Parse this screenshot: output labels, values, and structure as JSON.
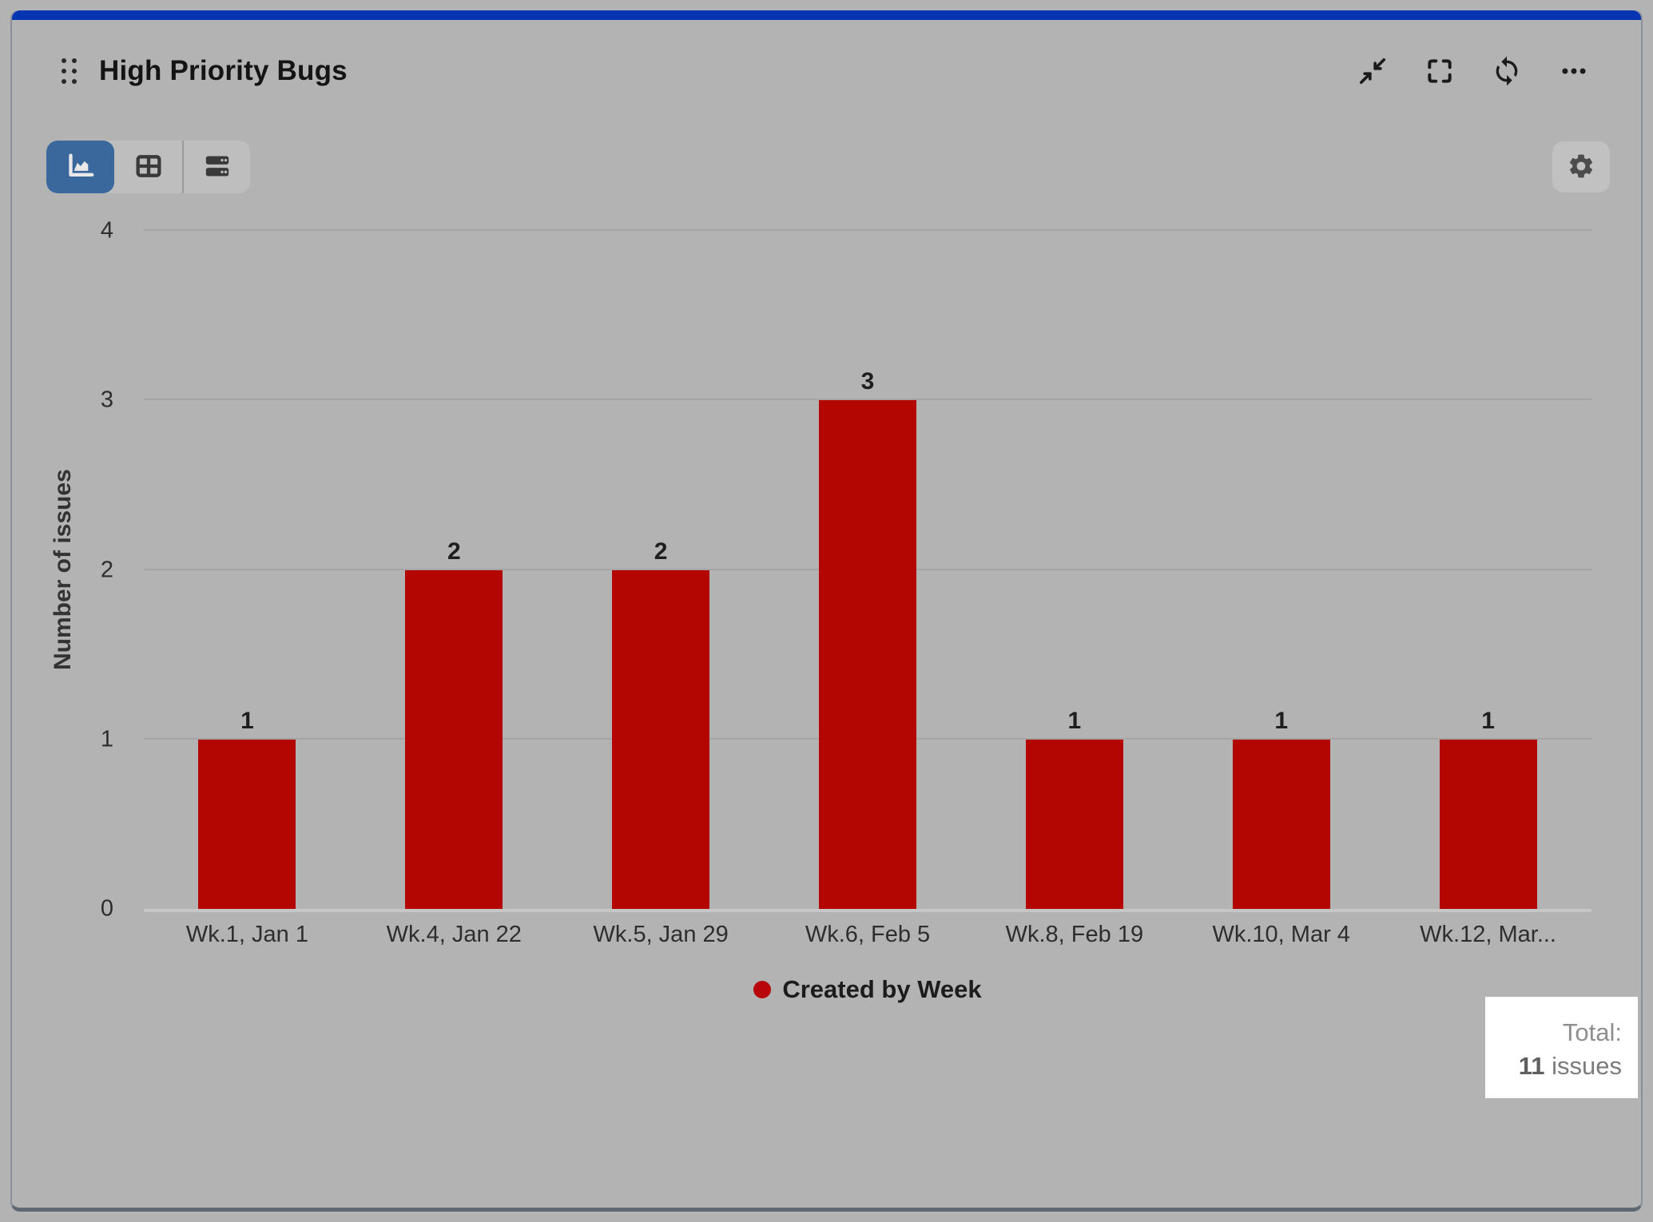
{
  "widget": {
    "title": "High Priority Bugs"
  },
  "header": {
    "drag_handle_icon": "drag-dots",
    "actions": [
      {
        "icon": "collapse-icon"
      },
      {
        "icon": "fullscreen-icon"
      },
      {
        "icon": "refresh-icon"
      },
      {
        "icon": "more-icon"
      }
    ]
  },
  "toolbar": {
    "views": [
      {
        "icon": "area-chart-icon",
        "selected": true
      },
      {
        "icon": "table-icon",
        "selected": false
      },
      {
        "icon": "rows-icon",
        "selected": false
      }
    ],
    "settings_icon": "gear-icon"
  },
  "chart_data": {
    "type": "bar",
    "title": "High Priority Bugs",
    "categories": [
      "Wk.1, Jan 1",
      "Wk.4, Jan 22",
      "Wk.5, Jan 29",
      "Wk.6, Feb 5",
      "Wk.8, Feb 19",
      "Wk.10, Mar 4",
      "Wk.12, Mar..."
    ],
    "series": [
      {
        "name": "Created by Week",
        "values": [
          1,
          2,
          2,
          3,
          1,
          1,
          1
        ]
      }
    ],
    "xlabel": "",
    "ylabel": "Number of issues",
    "ylim": [
      0,
      4
    ],
    "yticks": [
      0,
      1,
      2,
      3,
      4
    ],
    "grid": true,
    "legend_position": "bottom",
    "bar_color": "#b40600"
  },
  "total": {
    "label": "Total:",
    "value": "11",
    "unit": "issues"
  },
  "colors": {
    "accent_blue": "#0635b2",
    "selected_view_blue": "#3b689c",
    "bar_red": "#b40600",
    "legend_dot_red": "#b8060c",
    "background_grey": "#b2b3b2",
    "gridline_grey": "#a4a4a4",
    "total_box_bg": "#ffffff"
  }
}
